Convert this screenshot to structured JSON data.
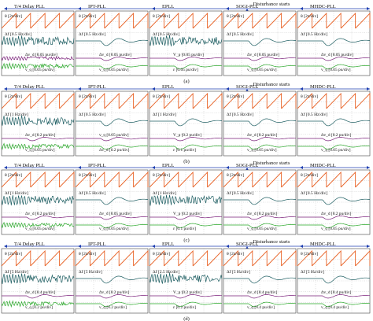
{
  "colors": {
    "theta": "#e8652a",
    "delta_f": "#1f5f63",
    "v_amp": "#7a1f7a",
    "v_q": "#2aa82a",
    "grid": "#9e9e9e",
    "arrow": "#1f3fb0",
    "banner_text": "#1f3fb0"
  },
  "chart_data": {
    "type": "line",
    "layout": "4 rows x 5 columns of oscilloscope panels",
    "columns": [
      "T/4 Delay PLL",
      "IPT-PLL",
      "EPLL",
      "SOGI-PLL",
      "MHDC-PLL"
    ],
    "rows": [
      {
        "caption": "(a)",
        "banner": "Disturbance starts",
        "panels": [
          {
            "labels": [
              "θ [2π/div]",
              "Δf [0.5 Hz/div]",
              "Δv_d [0.05 pu/div]",
              "v_q [0.05 pu/div]"
            ]
          },
          {
            "labels": [
              "θ [2π/div]",
              "Δf [0.5 Hz/div]",
              "Δv_d [0.05 pu/div]",
              "v_q [0.05 pu/div]"
            ]
          },
          {
            "labels": [
              "θ [2π/div]",
              "Δf [0.5 Hz/div]",
              "V_p [0.05 pu/div]",
              "ε [0.05 pu/div]"
            ]
          },
          {
            "labels": [
              "θ [2π/div]",
              "Δf [0.5 Hz/div]",
              "Δv_d [0.05 pu/div]",
              "v_q [0.05 pu/div]"
            ]
          },
          {
            "labels": [
              "θ [2π/div]",
              "Δf [0.5 Hz/div]",
              "Δv_d [0.05 pu/div]",
              "v_q [0.05 pu/div]"
            ]
          }
        ]
      },
      {
        "caption": "(b)",
        "banner": "Disturbance starts",
        "panels": [
          {
            "labels": [
              "θ [2π/div]",
              "Δf [1 Hz/div]",
              "Δv_d [0.2 pu/div]",
              "v_q [0.05 pu/div]"
            ]
          },
          {
            "labels": [
              "θ [2π/div]",
              "Δf [0.5 Hz/div]",
              "v_q [0.05 pu/div]",
              "Δv_d [0.2 pu/div]"
            ]
          },
          {
            "labels": [
              "θ [2π/div]",
              "Δf [1 Hz/div]",
              "V_p [0.2 pu/div]",
              "ε [0.1 pu/div]"
            ]
          },
          {
            "labels": [
              "θ [2π/div]",
              "Δf [0.5 Hz/div]",
              "Δv_d [0.2 pu/div]",
              "v_q [0.05 pu/div]"
            ]
          },
          {
            "labels": [
              "θ [2π/div]",
              "Δf [0.5 Hz/div]",
              "Δv_d [0.2 pu/div]",
              "v_q [0.05 pu/div]"
            ]
          }
        ]
      },
      {
        "caption": "(c)",
        "banner": "Disturbance starts",
        "panels": [
          {
            "labels": [
              "θ [2π/div]",
              "Δf [1 Hz/div]",
              "Δv_d [0.2 pu/div]",
              "v_q [0.05 pu/div]"
            ]
          },
          {
            "labels": [
              "θ [2π/div]",
              "Δf [0.5 Hz/div]",
              "Δv_d [0.05 pu/div]",
              "v_q [0.05 pu/div]"
            ]
          },
          {
            "labels": [
              "θ [2π/div]",
              "Δf [1 Hz/div]",
              "V_p [0.2 pu/div]",
              "ε [0.1 pu/div]"
            ]
          },
          {
            "labels": [
              "θ [2π/div]",
              "Δf [0.5 Hz/div]",
              "Δv_d [0.2 pu/div]",
              "v_q [0.05 pu/div]"
            ]
          },
          {
            "labels": [
              "θ [2π/div]",
              "Δf [0.5 Hz/div]",
              "Δv_d [0.2 pu/div]",
              "v_q [0.05 pu/div]"
            ]
          }
        ]
      },
      {
        "caption": "(d)",
        "banner": "Disturbance starts",
        "panels": [
          {
            "labels": [
              "θ [2π/div]",
              "Δf [5 Hz/div]",
              "Δv_d [0.4 pu/div]",
              "v_q [0.2 pu/div]"
            ]
          },
          {
            "labels": [
              "θ [2π/div]",
              "Δf [5 Hz/div]",
              "Δv_d [0.2 pu/div]",
              "v_q [0.2 pu/div]"
            ]
          },
          {
            "labels": [
              "θ [2π/div]",
              "Δf [2.5 Hz/div]",
              "V_p [0.2 pu/div]",
              "ε [0.2 pu/div]"
            ]
          },
          {
            "labels": [
              "θ [2π/div]",
              "Δf [5 Hz/div]",
              "Δv_d [0.4 pu/div]",
              "v_q [0.4 pu/div]"
            ]
          },
          {
            "labels": [
              "θ [2π/div]",
              "Δf [5 Hz/div]",
              "Δv_d [0.4 pu/div]",
              "v_q [0.4 pu/div]"
            ]
          }
        ]
      }
    ]
  }
}
